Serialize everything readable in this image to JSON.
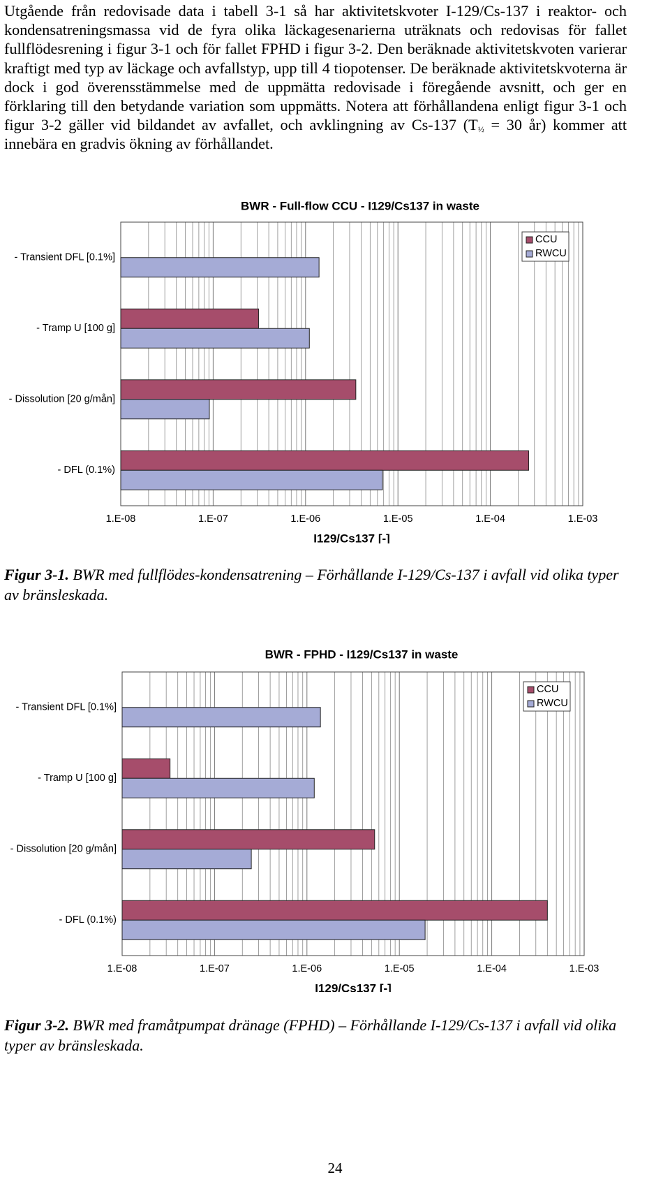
{
  "paragraph": {
    "before": "Utgående från redovisade data i tabell 3-1 så har aktivitetskvoter I-129/Cs-137 i reaktor- och kondensatreningsmassa vid de fyra olika läckagesenarierna uträknats och redovisas för fallet fullflödesrening i figur 3-1 och för fallet FPHD i figur 3-2. Den beräknade aktivitetskvoten varierar kraftigt med typ av läckage och avfallstyp, upp till 4 tiopotenser. De beräknade aktivitetskvoterna är dock i god överensstämmelse med de uppmätta redovisade i föregående avsnitt, och ger en förklaring till den betydande variation som uppmätts. Notera att förhållandena enligt figur 3-1 och figur 3-2 gäller vid bildandet av avfallet, och avklingning av Cs-137 (T",
    "subscript": "½",
    "after": " = 30 år) kommer att innebära en gradvis ökning av förhållandet."
  },
  "chart_data": [
    {
      "type": "bar",
      "orientation": "horizontal",
      "title": "BWR - Full-flow CCU - I129/Cs137 in waste",
      "x_label": "I129/Cs137 [-]",
      "categories": [
        "- Transient DFL [0.1%]",
        "- Tramp U [100 g]",
        "- Dissolution [20 g/mån]",
        "- DFL (0.1%)"
      ],
      "series": [
        {
          "name": "CCU",
          "color": "#a64d6b",
          "values": [
            null,
            3.1e-07,
            3.5e-06,
            0.00026
          ]
        },
        {
          "name": "RWCU",
          "color": "#a5abd6",
          "values": [
            1.4e-06,
            1.1e-06,
            9.1e-08,
            6.8e-06
          ]
        }
      ],
      "xlim": [
        1e-08,
        0.001
      ],
      "x_log": true,
      "grid": true,
      "legend": "upper right",
      "xticks": [
        {
          "value": 1e-08,
          "label": "1.E-08"
        },
        {
          "value": 1e-07,
          "label": "1.E-07"
        },
        {
          "value": 1e-06,
          "label": "1.E-06"
        },
        {
          "value": 1e-05,
          "label": "1.E-05"
        },
        {
          "value": 0.0001,
          "label": "1.E-04"
        },
        {
          "value": 0.001,
          "label": "1.E-03"
        }
      ]
    },
    {
      "type": "bar",
      "orientation": "horizontal",
      "title": "BWR - FPHD - I129/Cs137 in waste",
      "x_label": "I129/Cs137 [-]",
      "categories": [
        "- Transient DFL [0.1%]",
        "- Tramp U [100 g]",
        "- Dissolution [20 g/mån]",
        "- DFL (0.1%)"
      ],
      "series": [
        {
          "name": "CCU",
          "color": "#a64d6b",
          "values": [
            null,
            3.3e-08,
            5.4e-06,
            0.0004
          ]
        },
        {
          "name": "RWCU",
          "color": "#a5abd6",
          "values": [
            1.4e-06,
            1.2e-06,
            2.5e-07,
            1.9e-05
          ]
        }
      ],
      "xlim": [
        1e-08,
        0.001
      ],
      "x_log": true,
      "grid": true,
      "legend": "upper right",
      "xticks": [
        {
          "value": 1e-08,
          "label": "1.E-08"
        },
        {
          "value": 1e-07,
          "label": "1.E-07"
        },
        {
          "value": 1e-06,
          "label": "1.E-06"
        },
        {
          "value": 1e-05,
          "label": "1.E-05"
        },
        {
          "value": 0.0001,
          "label": "1.E-04"
        },
        {
          "value": 0.001,
          "label": "1.E-03"
        }
      ]
    }
  ],
  "captions": [
    {
      "label": "Figur 3-1.",
      "text": " BWR med fullflödes-kondensatrening – Förhållande I-129/Cs-137 i avfall vid olika typer av bränsleskada."
    },
    {
      "label": "Figur 3-2.",
      "text": " BWR med framåtpumpat dränage (FPHD) – Förhållande I-129/Cs-137 i avfall vid olika typer av bränsleskada."
    }
  ],
  "page_number": "24"
}
